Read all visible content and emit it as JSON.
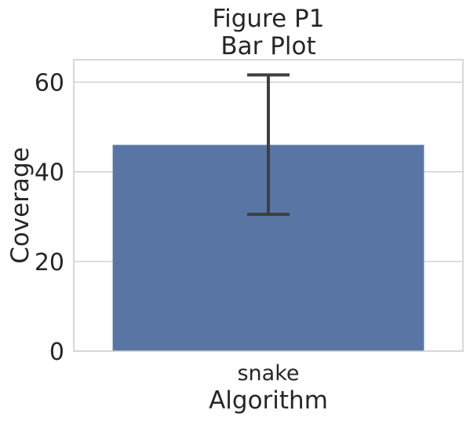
{
  "chart_data": {
    "type": "bar",
    "title_lines": [
      "Figure P1",
      "Bar Plot"
    ],
    "xlabel": "Algorithm",
    "ylabel": "Coverage",
    "categories": [
      "snake"
    ],
    "values": [
      46.0
    ],
    "error_bars": [
      {
        "low": 30.5,
        "high": 61.6
      }
    ],
    "yticks": [
      0,
      20,
      40,
      60
    ],
    "ylim": [
      0,
      65
    ],
    "grid": "horizontal",
    "colors": {
      "bar": "#5975a4",
      "error_bar": "#3f3f3f",
      "grid": "#cccccc",
      "spine": "#cccccc"
    }
  }
}
